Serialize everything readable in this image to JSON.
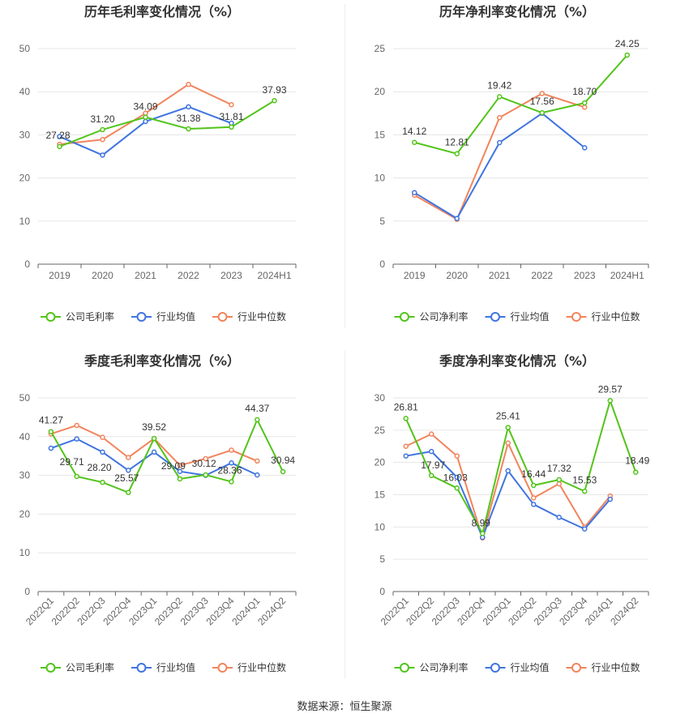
{
  "colors": {
    "company": "#52c41a",
    "avg": "#3f74e0",
    "median": "#f2845c",
    "grid": "#e6e6e6",
    "axis": "#666666",
    "divider": "#eeeeee"
  },
  "source": "数据来源：恒生聚源",
  "chart_data": [
    {
      "type": "line",
      "title": "历年毛利率变化情况（%）",
      "categories": [
        "2019",
        "2020",
        "2021",
        "2022",
        "2023",
        "2024H1"
      ],
      "ylim": [
        0,
        50
      ],
      "yticks": [
        0,
        10,
        20,
        30,
        40,
        50
      ],
      "legend_position": "bottom",
      "series": [
        {
          "name": "公司毛利率",
          "role": "company",
          "values": [
            27.28,
            31.2,
            34.09,
            31.38,
            31.81,
            37.93
          ],
          "labels": [
            "27.28",
            "31.20",
            "34.09",
            "31.38",
            "31.81",
            "37.93"
          ]
        },
        {
          "name": "行业均值",
          "role": "avg",
          "values": [
            29.6,
            25.3,
            33.1,
            36.5,
            32.7,
            null
          ]
        },
        {
          "name": "行业中位数",
          "role": "median",
          "values": [
            27.8,
            28.9,
            35.0,
            41.7,
            37.0,
            null
          ]
        }
      ]
    },
    {
      "type": "line",
      "title": "历年净利率变化情况（%）",
      "categories": [
        "2019",
        "2020",
        "2021",
        "2022",
        "2023",
        "2024H1"
      ],
      "ylim": [
        0,
        25
      ],
      "yticks": [
        0,
        5,
        10,
        15,
        20,
        25
      ],
      "legend_position": "bottom",
      "series": [
        {
          "name": "公司净利率",
          "role": "company",
          "values": [
            14.12,
            12.81,
            19.42,
            17.56,
            18.7,
            24.25
          ],
          "labels": [
            "14.12",
            "12.81",
            "19.42",
            "17.56",
            "18.70",
            "24.25"
          ]
        },
        {
          "name": "行业均值",
          "role": "avg",
          "values": [
            8.3,
            5.3,
            14.1,
            17.5,
            13.5,
            null
          ]
        },
        {
          "name": "行业中位数",
          "role": "median",
          "values": [
            8.0,
            5.2,
            17.0,
            19.8,
            18.2,
            null
          ]
        }
      ]
    },
    {
      "type": "line",
      "title": "季度毛利率变化情况（%）",
      "categories": [
        "2022Q1",
        "2022Q2",
        "2022Q3",
        "2022Q4",
        "2023Q1",
        "2023Q2",
        "2023Q3",
        "2023Q4",
        "2024Q1",
        "2024Q2"
      ],
      "ylim": [
        0,
        50
      ],
      "yticks": [
        0,
        10,
        20,
        30,
        40,
        50
      ],
      "legend_position": "bottom",
      "series": [
        {
          "name": "公司毛利率",
          "role": "company",
          "values": [
            41.27,
            29.71,
            28.2,
            25.57,
            39.52,
            29.09,
            30.12,
            28.36,
            44.37,
            30.94
          ],
          "labels": [
            "41.27",
            "29.71",
            "28.20",
            "25.57",
            "39.52",
            "29.09",
            "30.12",
            "28.36",
            "44.37",
            "30.94"
          ]
        },
        {
          "name": "行业均值",
          "role": "avg",
          "values": [
            37.0,
            39.4,
            36.0,
            31.3,
            36.0,
            31.0,
            30.0,
            33.2,
            30.1,
            null
          ]
        },
        {
          "name": "行业中位数",
          "role": "median",
          "values": [
            40.7,
            42.9,
            39.8,
            34.6,
            39.5,
            32.6,
            34.3,
            36.5,
            33.7,
            null
          ]
        }
      ]
    },
    {
      "type": "line",
      "title": "季度净利率变化情况（%）",
      "categories": [
        "2022Q1",
        "2022Q2",
        "2022Q3",
        "2022Q4",
        "2023Q1",
        "2023Q2",
        "2023Q3",
        "2023Q4",
        "2024Q1",
        "2024Q2"
      ],
      "ylim": [
        0,
        30
      ],
      "yticks": [
        0,
        5,
        10,
        15,
        20,
        25,
        30
      ],
      "legend_position": "bottom",
      "series": [
        {
          "name": "公司净利率",
          "role": "company",
          "values": [
            26.81,
            17.97,
            16.03,
            8.99,
            25.41,
            16.44,
            17.32,
            15.53,
            29.57,
            18.49
          ],
          "labels": [
            "26.81",
            "17.97",
            "16.03",
            "8.99",
            "25.41",
            "16.44",
            "17.32",
            "15.53",
            "29.57",
            "18.49"
          ]
        },
        {
          "name": "行业均值",
          "role": "avg",
          "values": [
            21.0,
            21.7,
            17.7,
            8.4,
            18.7,
            13.5,
            11.5,
            9.7,
            14.3,
            null
          ]
        },
        {
          "name": "行业中位数",
          "role": "median",
          "values": [
            22.5,
            24.4,
            21.0,
            8.3,
            23.0,
            14.5,
            16.7,
            10.0,
            14.8,
            null
          ]
        }
      ]
    }
  ]
}
